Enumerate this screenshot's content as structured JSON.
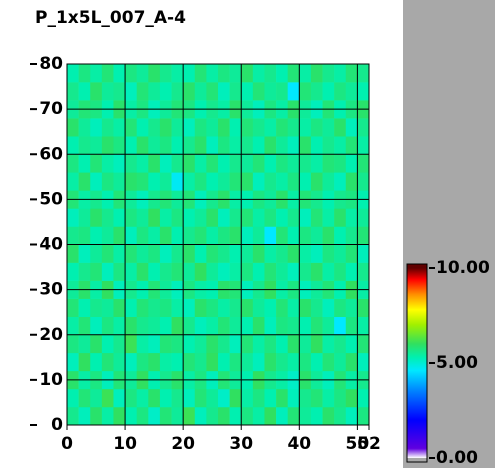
{
  "chart_data": {
    "type": "heatmap",
    "title": "P_1x5L_007_A-4",
    "xlim": [
      0,
      52
    ],
    "ylim": [
      0,
      80
    ],
    "xticks": [
      0,
      10,
      20,
      30,
      40,
      50,
      52
    ],
    "yticks": [
      0,
      10,
      20,
      30,
      40,
      50,
      60,
      70,
      80
    ],
    "grid": true,
    "clim": [
      0,
      10
    ],
    "cticks": [
      {
        "value": 0,
        "label": "0.00"
      },
      {
        "value": 5,
        "label": "5.00"
      },
      {
        "value": 10,
        "label": "10.00"
      }
    ],
    "colorscale": [
      [
        0,
        "#ffffff"
      ],
      [
        0.5,
        "#6000e0"
      ],
      [
        2,
        "#0000ff"
      ],
      [
        3.5,
        "#0080ff"
      ],
      [
        4.6,
        "#00e8ff"
      ],
      [
        5.3,
        "#00f0b0"
      ],
      [
        6,
        "#30e060"
      ],
      [
        7,
        "#a0f000"
      ],
      [
        7.8,
        "#ffff00"
      ],
      [
        8.6,
        "#ff9000"
      ],
      [
        9.4,
        "#ff0000"
      ],
      [
        10,
        "#600000"
      ]
    ],
    "z": [
      [
        5.6,
        5.2,
        5.9,
        5.4,
        6.0,
        5.3,
        5.7,
        5.1,
        5.8,
        5.5,
        6.1,
        5.2,
        5.6,
        5.9,
        5.3,
        5.7,
        5.4,
        6.0,
        5.2,
        5.8,
        5.5,
        5.3,
        5.9,
        5.6,
        5.2,
        5.7
      ],
      [
        5.3,
        5.8,
        5.5,
        6.1,
        5.2,
        5.7,
        5.4,
        5.9,
        5.3,
        5.6,
        5.2,
        5.8,
        5.5,
        5.1,
        6.0,
        5.4,
        5.7,
        5.3,
        5.9,
        5.2,
        5.6,
        5.8,
        5.4,
        5.7,
        6.0,
        5.3
      ],
      [
        5.9,
        5.4,
        5.7,
        5.2,
        5.8,
        5.5,
        6.0,
        5.3,
        5.6,
        5.9,
        5.4,
        5.7,
        5.2,
        5.8,
        5.5,
        5.3,
        6.0,
        5.6,
        5.4,
        5.1,
        5.9,
        5.5,
        5.2,
        5.8,
        5.4,
        5.6
      ],
      [
        5.2,
        6.0,
        5.3,
        5.8,
        5.5,
        5.2,
        5.7,
        5.9,
        5.4,
        5.3,
        5.8,
        5.6,
        6.0,
        5.3,
        5.7,
        5.5,
        5.2,
        5.9,
        5.6,
        5.4,
        5.7,
        5.3,
        5.8,
        5.5,
        5.9,
        5.2
      ],
      [
        5.7,
        5.5,
        5.9,
        5.3,
        5.6,
        6.1,
        5.4,
        5.2,
        5.8,
        5.7,
        5.3,
        5.5,
        5.9,
        5.6,
        5.2,
        5.8,
        5.4,
        5.7,
        5.3,
        5.9,
        5.5,
        6.0,
        5.4,
        5.6,
        5.3,
        5.8
      ],
      [
        5.4,
        5.8,
        5.2,
        5.7,
        5.4,
        5.9,
        5.6,
        5.5,
        5.3,
        6.0,
        5.6,
        5.2,
        5.4,
        5.8,
        5.5,
        5.3,
        5.9,
        5.2,
        5.7,
        5.6,
        5.3,
        5.8,
        5.5,
        4.6,
        5.7,
        5.4
      ],
      [
        5.8,
        5.3,
        5.6,
        5.5,
        5.9,
        5.3,
        5.8,
        5.6,
        5.7,
        5.4,
        5.2,
        5.9,
        5.7,
        5.4,
        5.6,
        5.9,
        5.5,
        5.3,
        5.8,
        5.4,
        5.9,
        5.6,
        5.2,
        5.7,
        5.5,
        5.9
      ],
      [
        5.5,
        5.9,
        5.4,
        6.0,
        5.2,
        5.6,
        5.3,
        5.8,
        5.5,
        5.2,
        5.7,
        5.4,
        5.3,
        5.9,
        5.8,
        5.2,
        5.6,
        6.0,
        5.4,
        5.7,
        5.2,
        5.5,
        5.8,
        5.3,
        6.0,
        5.4
      ],
      [
        5.3,
        5.6,
        5.8,
        5.2,
        5.7,
        5.4,
        5.9,
        5.3,
        5.6,
        5.8,
        5.5,
        6.0,
        5.5,
        5.2,
        5.4,
        5.7,
        5.3,
        5.8,
        5.5,
        5.2,
        5.6,
        5.9,
        5.4,
        5.7,
        5.3,
        5.6
      ],
      [
        5.9,
        5.2,
        5.5,
        5.8,
        5.4,
        5.8,
        5.5,
        5.7,
        5.2,
        5.6,
        5.9,
        5.3,
        5.8,
        5.6,
        5.3,
        5.5,
        5.9,
        5.4,
        5.6,
        5.9,
        5.4,
        5.2,
        5.7,
        5.5,
        5.8,
        5.2
      ],
      [
        5.6,
        5.7,
        5.3,
        5.5,
        5.9,
        5.2,
        5.7,
        5.4,
        5.9,
        5.3,
        5.6,
        5.8,
        5.4,
        5.7,
        5.9,
        5.2,
        5.5,
        4.6,
        5.8,
        5.3,
        5.7,
        5.5,
        5.9,
        5.3,
        5.6,
        5.8
      ],
      [
        5.2,
        5.5,
        5.9,
        5.6,
        5.3,
        5.7,
        5.5,
        6.0,
        5.4,
        5.7,
        5.3,
        5.5,
        5.9,
        5.2,
        5.6,
        5.8,
        5.4,
        5.7,
        5.3,
        5.6,
        5.2,
        5.8,
        5.4,
        5.9,
        5.4,
        5.5
      ],
      [
        5.8,
        5.4,
        5.6,
        5.3,
        5.8,
        5.5,
        5.2,
        5.6,
        5.8,
        5.5,
        5.8,
        5.2,
        5.6,
        5.9,
        5.4,
        5.3,
        5.7,
        5.5,
        5.9,
        5.4,
        5.8,
        5.6,
        5.3,
        5.6,
        5.7,
        5.3
      ],
      [
        5.4,
        5.9,
        5.2,
        5.7,
        5.5,
        5.9,
        5.8,
        5.3,
        5.5,
        4.7,
        5.4,
        5.7,
        5.3,
        5.5,
        5.8,
        5.9,
        5.2,
        5.6,
        5.4,
        5.7,
        5.3,
        5.9,
        5.5,
        5.2,
        5.9,
        5.6
      ],
      [
        5.7,
        5.3,
        5.8,
        5.4,
        5.2,
        5.6,
        5.4,
        5.9,
        5.2,
        5.6,
        5.9,
        5.4,
        5.8,
        5.3,
        5.6,
        5.5,
        5.8,
        5.3,
        5.7,
        5.5,
        5.6,
        5.4,
        5.8,
        5.7,
        5.3,
        5.8
      ],
      [
        5.3,
        5.6,
        5.5,
        5.9,
        5.7,
        5.3,
        5.9,
        5.5,
        5.7,
        5.3,
        5.6,
        5.9,
        5.2,
        5.7,
        5.4,
        5.6,
        5.3,
        5.9,
        5.5,
        5.2,
        5.9,
        5.3,
        5.6,
        5.4,
        5.8,
        5.4
      ],
      [
        5.9,
        5.5,
        5.2,
        5.6,
        5.4,
        5.8,
        5.3,
        5.6,
        5.9,
        5.5,
        5.2,
        5.7,
        5.5,
        5.9,
        5.3,
        5.8,
        5.6,
        5.4,
        5.8,
        5.6,
        5.4,
        5.7,
        5.5,
        5.9,
        5.2,
        5.6
      ],
      [
        5.5,
        5.8,
        5.7,
        5.3,
        5.9,
        5.4,
        5.7,
        5.2,
        5.5,
        5.8,
        5.7,
        5.3,
        5.6,
        5.4,
        5.9,
        5.5,
        5.2,
        5.7,
        5.4,
        5.9,
        5.5,
        5.2,
        5.8,
        5.3,
        5.7,
        5.9
      ],
      [
        5.6,
        5.3,
        5.9,
        5.5,
        5.6,
        5.2,
        5.8,
        5.5,
        5.3,
        5.6,
        5.9,
        5.5,
        5.8,
        5.2,
        5.6,
        5.3,
        5.8,
        5.5,
        5.6,
        4.6,
        5.8,
        5.6,
        5.3,
        5.7,
        5.5,
        5.3
      ],
      [
        5.3,
        5.7,
        5.4,
        5.8,
        5.3,
        5.7,
        5.5,
        5.9,
        5.6,
        5.4,
        5.3,
        5.8,
        5.4,
        5.7,
        5.5,
        5.9,
        5.4,
        5.6,
        5.3,
        5.8,
        5.4,
        5.9,
        5.6,
        5.4,
        5.8,
        5.6
      ]
    ]
  }
}
